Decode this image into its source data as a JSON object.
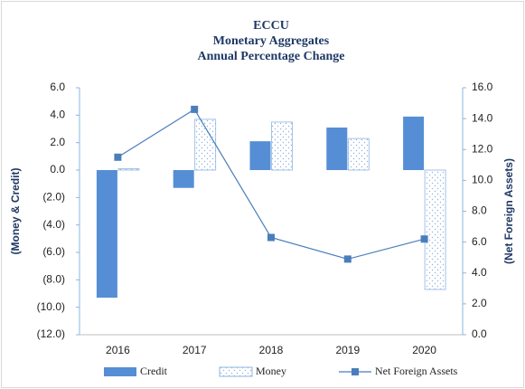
{
  "chart_data": {
    "type": "bar_line",
    "title": [
      "ECCU",
      "Monetary  Aggregates",
      "Annual Percentage Change"
    ],
    "categories": [
      "2016",
      "2017",
      "2018",
      "2019",
      "2020"
    ],
    "series": [
      {
        "name": "Credit",
        "color": "#558ed5",
        "style": "solid",
        "values": [
          -9.3,
          -1.3,
          2.1,
          3.1,
          3.9
        ]
      },
      {
        "name": "Money",
        "color": "#8eb4e3",
        "style": "dotted",
        "values": [
          0.1,
          3.7,
          3.5,
          2.3,
          -8.7
        ]
      },
      {
        "name": "Net Foreign Assets",
        "color": "#4a7ebb",
        "type": "line",
        "axis": "y2",
        "values": [
          11.5,
          14.6,
          6.3,
          4.9,
          6.2
        ]
      }
    ],
    "ylabel": "(Money & Credit)",
    "y2label": "(Net Foreign Assets)",
    "ylim": [
      -12,
      6
    ],
    "yticks": [
      {
        "value": 6,
        "label": "6.0"
      },
      {
        "value": 4,
        "label": "4.0"
      },
      {
        "value": 2,
        "label": "2.0"
      },
      {
        "value": 0,
        "label": "0.0"
      },
      {
        "value": -2,
        "label": "(2.0)"
      },
      {
        "value": -4,
        "label": "(4.0)"
      },
      {
        "value": -6,
        "label": "(6.0)"
      },
      {
        "value": -8,
        "label": "(8.0)"
      },
      {
        "value": -10,
        "label": "(10.0)"
      },
      {
        "value": -12,
        "label": "(12.0)"
      }
    ],
    "y2lim": [
      0,
      16
    ],
    "y2ticks": [
      {
        "value": 16,
        "label": "16.0"
      },
      {
        "value": 14,
        "label": "14.0"
      },
      {
        "value": 12,
        "label": "12.0"
      },
      {
        "value": 10,
        "label": "10.0"
      },
      {
        "value": 8,
        "label": "8.0"
      },
      {
        "value": 6,
        "label": "6.0"
      },
      {
        "value": 4,
        "label": "4.0"
      },
      {
        "value": 2,
        "label": "2.0"
      },
      {
        "value": 0,
        "label": "0.0"
      }
    ],
    "legend": "bottom"
  }
}
